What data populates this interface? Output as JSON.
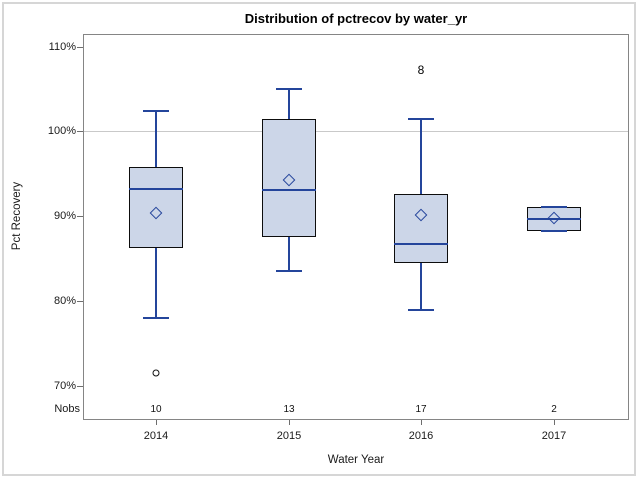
{
  "chart": {
    "title": "Distribution of pctrecov by water_yr",
    "xlabel": "Water Year",
    "ylabel": "Pct Recovery",
    "nobs_row_label": "Nobs"
  },
  "chart_data": {
    "type": "boxplot",
    "title": "Distribution of pctrecov by water_yr",
    "xlabel": "Water Year",
    "ylabel": "Pct Recovery",
    "categories": [
      "2014",
      "2015",
      "2016",
      "2017"
    ],
    "nobs": [
      "10",
      "13",
      "17",
      "2"
    ],
    "yticks": [
      {
        "value": 110,
        "label": "110%"
      },
      {
        "value": 100,
        "label": "100%"
      },
      {
        "value": 90,
        "label": "90%"
      },
      {
        "value": 80,
        "label": "80%"
      },
      {
        "value": 70,
        "label": "70%"
      }
    ],
    "ylim": [
      66,
      111.5
    ],
    "reference_lines": [
      100
    ],
    "legend": "none",
    "grid": "off",
    "series": [
      {
        "category": "2014",
        "n": 10,
        "whisker_low": 78.0,
        "q1": 86.2,
        "median": 93.2,
        "q3": 95.8,
        "whisker_high": 102.4,
        "mean": 90.4,
        "outliers": [
          71.5
        ],
        "far_outlier_labels": []
      },
      {
        "category": "2015",
        "n": 13,
        "whisker_low": 83.5,
        "q1": 87.6,
        "median": 93.1,
        "q3": 101.5,
        "whisker_high": 105.0,
        "mean": 94.3,
        "outliers": [],
        "far_outlier_labels": []
      },
      {
        "category": "2016",
        "n": 17,
        "whisker_low": 78.9,
        "q1": 84.5,
        "median": 86.7,
        "q3": 92.6,
        "whisker_high": 101.5,
        "mean": 90.1,
        "outliers": [],
        "far_outlier_labels": [
          {
            "label": "8",
            "value": 107.2
          }
        ]
      },
      {
        "category": "2017",
        "n": 2,
        "whisker_low": 88.3,
        "q1": 88.3,
        "median": 89.7,
        "q3": 91.1,
        "whisker_high": 91.1,
        "mean": 89.8,
        "outliers": [],
        "far_outlier_labels": []
      }
    ]
  },
  "colors": {
    "box_fill": "#ccd6e8",
    "box_border": "#0d0d0d",
    "whisker_median_mean": "#24459b",
    "outlier": "#111111",
    "frame": "#858585",
    "reference_line": "#c9c9c9",
    "tick": "#6e6e6e",
    "text": "#1a1a1a",
    "outer_border": "#d6d6d6"
  }
}
